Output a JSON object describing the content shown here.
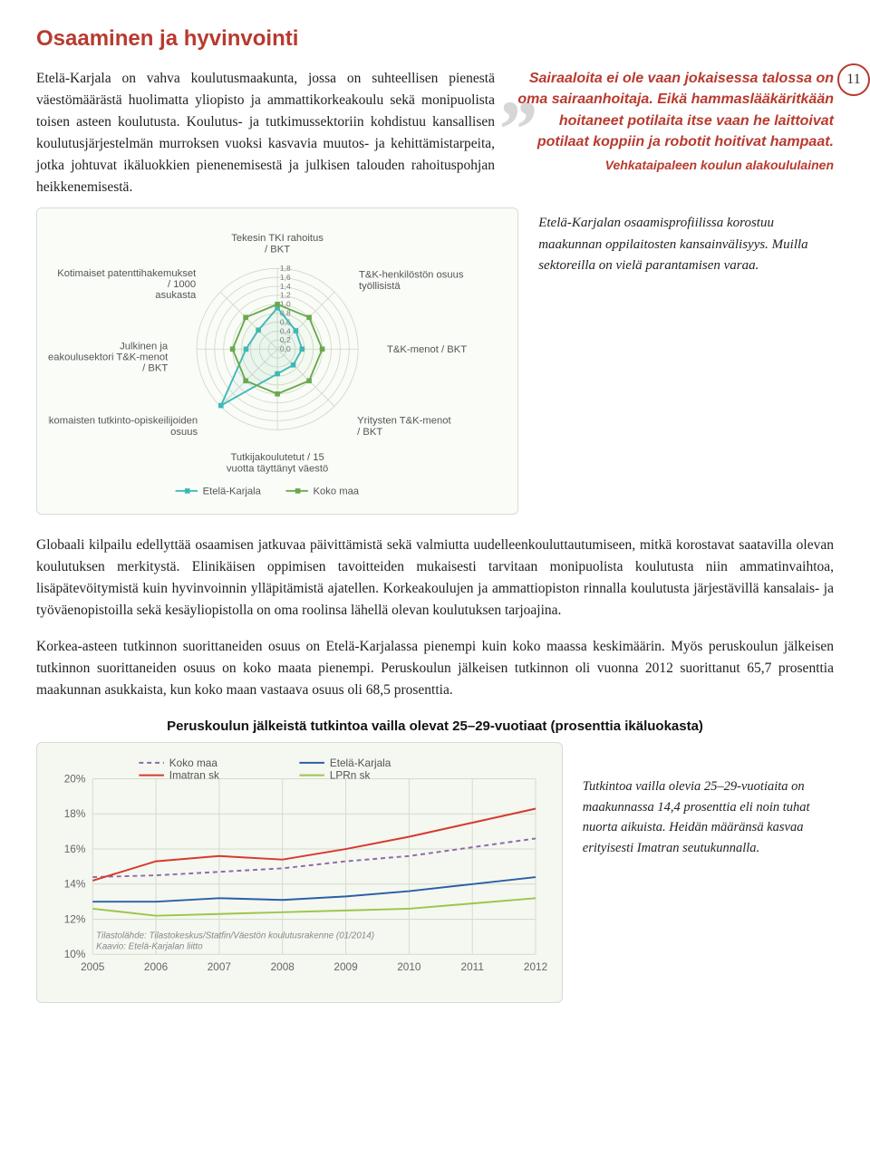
{
  "page_number": "11",
  "title": "Osaaminen ja hyvinvointi",
  "intro": "Etelä-Karjala on vahva koulutusmaakunta, jossa on suhteellisen pienestä väestömäärästä huolimatta yliopisto ja ammattikorkeakoulu sekä monipuolista toisen asteen koulutusta. Koulutus- ja tutkimussektoriin kohdistuu kansallisen koulutusjärjestelmän murroksen vuoksi kasvavia muutos- ja kehittämistarpeita, jotka johtuvat ikäluokkien pienenemisestä ja julkisen talouden rahoituspohjan heikkenemisestä.",
  "pullquote": "Sairaaloita ei ole vaan jokaisessa talossa on oma sairaanhoitaja. Eikä hammaslääkäritkään hoitaneet potilaita itse vaan he laittoivat potilaat koppiin ja robotit hoitivat hampaat.",
  "quote_attr": "Vehkataipaleen koulun alakoululainen",
  "radar_caption": "Etelä-Karjalan osaamisprofiilissa korostuu maakunnan oppilaitosten kansainvälisyys. Muilla sektoreilla on vielä parantamisen varaa.",
  "radar": {
    "axes": [
      "Tekesin TKI rahoitus / BKT",
      "T&K-henkilöstön osuus työllisistä",
      "T&K-menot / BKT",
      "Yritysten T&K-menot / BKT",
      "Tutkijakoulutetut / 15 vuotta täyttänyt väestö",
      "Ulkomaisten tutkinto-opiskeilijoiden osuus",
      "Julkinen ja korkeakoulusektori T&K-menot / BKT",
      "Kotimaiset patenttihakemukset / 1000 asukasta"
    ],
    "ticks": [
      "0,0",
      "0,2",
      "0,4",
      "0,6",
      "0,8",
      "1,0",
      "1,2",
      "1,4",
      "1,6",
      "1,8"
    ],
    "ring_count": 9,
    "max": 1.8,
    "series": [
      {
        "name": "Etelä-Karjala",
        "color": "#3fb8b8",
        "fill_opacity": 0.06,
        "values": [
          0.92,
          0.58,
          0.55,
          0.5,
          0.55,
          1.78,
          0.7,
          0.6
        ]
      },
      {
        "name": "Koko maa",
        "color": "#6aa84f",
        "fill_opacity": 0.04,
        "values": [
          1.0,
          1.0,
          1.0,
          1.0,
          1.0,
          1.0,
          1.0,
          1.0
        ]
      }
    ],
    "grid_color": "#d4dcc9",
    "marker_size": 3
  },
  "para1": "Globaali kilpailu edellyttää osaamisen jatkuvaa päivittämistä sekä valmiutta uudelleenkouluttautumiseen, mitkä korostavat saatavilla olevan koulutuksen merkitystä. Elinikäisen oppimisen tavoitteiden mukaisesti tarvitaan monipuolista koulutusta niin ammatinvaihtoa, lisäpätevöitymistä kuin hyvinvoinnin ylläpitämistä ajatellen. Korkeakoulujen ja ammattiopiston rinnalla koulutusta järjestävillä kansalais- ja työväenopistoilla sekä kesäyliopistolla on oma roolinsa lähellä olevan koulutuksen tarjoajina.",
  "para2": "Korkea-asteen tutkinnon suorittaneiden osuus on Etelä-Karjalassa pienempi kuin koko maassa keskimäärin. Myös peruskoulun jälkeisen tutkinnon suorittaneiden osuus on koko maata pienempi. Peruskoulun jälkeisen tutkinnon oli vuonna 2012 suorittanut 65,7 prosenttia maakunnan asukkaista, kun koko maan vastaava osuus oli 68,5 prosenttia.",
  "subheading": "Peruskoulun jälkeistä tutkintoa vailla olevat 25–29-vuotiaat (prosenttia ikäluokasta)",
  "linechart": {
    "years": [
      2005,
      2006,
      2007,
      2008,
      2009,
      2010,
      2011,
      2012
    ],
    "y_ticks": [
      "10%",
      "12%",
      "14%",
      "16%",
      "18%",
      "20%"
    ],
    "y_min": 10,
    "y_max": 20,
    "grid_color": "#d4dcc9",
    "series": [
      {
        "name": "Koko maa",
        "color": "#8e6aa8",
        "dash": "5,4",
        "values": [
          14.4,
          14.5,
          14.7,
          14.9,
          15.3,
          15.6,
          16.1,
          16.6
        ]
      },
      {
        "name": "Etelä-Karjala",
        "color": "#2a5fa6",
        "dash": "none",
        "values": [
          13.0,
          13.0,
          13.2,
          13.1,
          13.3,
          13.6,
          14.0,
          14.4
        ]
      },
      {
        "name": "Imatran sk",
        "color": "#d63a2e",
        "dash": "none",
        "values": [
          14.2,
          15.3,
          15.6,
          15.4,
          16.0,
          16.7,
          17.5,
          18.3
        ]
      },
      {
        "name": "LPRn sk",
        "color": "#9cc64a",
        "dash": "none",
        "values": [
          12.6,
          12.2,
          12.3,
          12.4,
          12.5,
          12.6,
          12.9,
          13.2
        ]
      }
    ],
    "source1": "Tilastolähde: Tilastokeskus/Statfin/Väestön koulutusrakenne (01/2014)",
    "source2": "Kaavio: Etelä-Karjalan liitto"
  },
  "bottom_caption": "Tutkintoa vailla olevia 25–29-vuotiaita on maakunnassa 14,4 prosenttia eli noin tuhat nuorta aikuista. Heidän määränsä kasvaa erityisesti Imatran seutukunnalla."
}
